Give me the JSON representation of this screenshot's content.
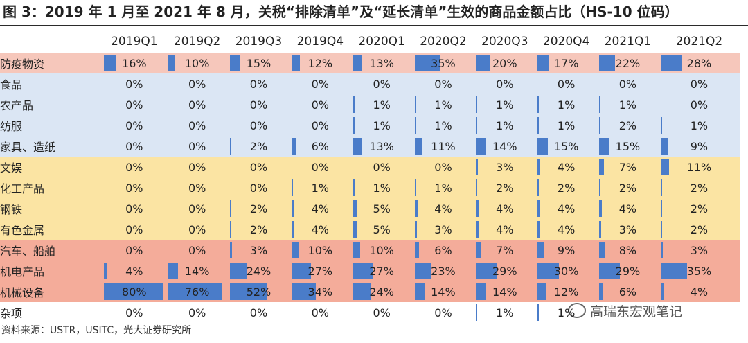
{
  "title": "图 3：2019 年 1 月至 2021 年 8 月，关税“排除清单”及“延长清单”生效的商品金额占比（HS-10 位码）",
  "source": "资料来源：USTR，USITC，光大证券研究所",
  "watermark": "高瑞东宏观笔记",
  "colors": {
    "bar": "#4a7cc9",
    "group_pink": "#f6c7bb",
    "group_blue": "#dbe6f4",
    "group_yellow": "#fbe4a3",
    "group_salmon": "#f4ac9a"
  },
  "chart_data": {
    "type": "table",
    "columns": [
      "2019Q1",
      "2019Q2",
      "2019Q3",
      "2019Q4",
      "2020Q1",
      "2020Q2",
      "2020Q3",
      "2020Q4",
      "2021Q1",
      "2021Q2"
    ],
    "unit": "%",
    "rows": [
      {
        "label": "防疫物资",
        "group": "pink",
        "values": [
          16,
          10,
          15,
          12,
          13,
          35,
          20,
          17,
          22,
          28
        ]
      },
      {
        "label": "食品",
        "group": "blue",
        "values": [
          0,
          0,
          0,
          0,
          0,
          0,
          0,
          0,
          0,
          0
        ]
      },
      {
        "label": "农产品",
        "group": "blue",
        "values": [
          0,
          0,
          0,
          0,
          1,
          1,
          1,
          1,
          1,
          0
        ]
      },
      {
        "label": "纺服",
        "group": "blue",
        "values": [
          0,
          0,
          0,
          0,
          1,
          1,
          1,
          1,
          2,
          1
        ]
      },
      {
        "label": "家具、造纸",
        "group": "blue",
        "values": [
          0,
          0,
          2,
          6,
          13,
          11,
          14,
          15,
          15,
          9
        ]
      },
      {
        "label": "文娱",
        "group": "yellow",
        "values": [
          0,
          0,
          0,
          0,
          0,
          0,
          3,
          4,
          7,
          11
        ]
      },
      {
        "label": "化工产品",
        "group": "yellow",
        "values": [
          0,
          0,
          0,
          1,
          1,
          1,
          2,
          2,
          2,
          2
        ]
      },
      {
        "label": "钢铁",
        "group": "yellow",
        "values": [
          0,
          0,
          2,
          4,
          5,
          4,
          4,
          4,
          4,
          2
        ]
      },
      {
        "label": "有色金属",
        "group": "yellow",
        "values": [
          0,
          0,
          2,
          4,
          5,
          3,
          4,
          4,
          3,
          2
        ]
      },
      {
        "label": "汽车、船舶",
        "group": "salmon",
        "values": [
          0,
          0,
          3,
          10,
          10,
          6,
          7,
          9,
          8,
          3
        ]
      },
      {
        "label": "机电产品",
        "group": "salmon",
        "values": [
          4,
          14,
          24,
          27,
          27,
          23,
          29,
          30,
          29,
          35
        ]
      },
      {
        "label": "机械设备",
        "group": "salmon",
        "values": [
          80,
          76,
          52,
          34,
          24,
          14,
          14,
          12,
          6,
          4
        ]
      },
      {
        "label": "杂项",
        "group": "none",
        "values": [
          0,
          0,
          0,
          0,
          0,
          0,
          1,
          1,
          null,
          null
        ]
      }
    ]
  }
}
